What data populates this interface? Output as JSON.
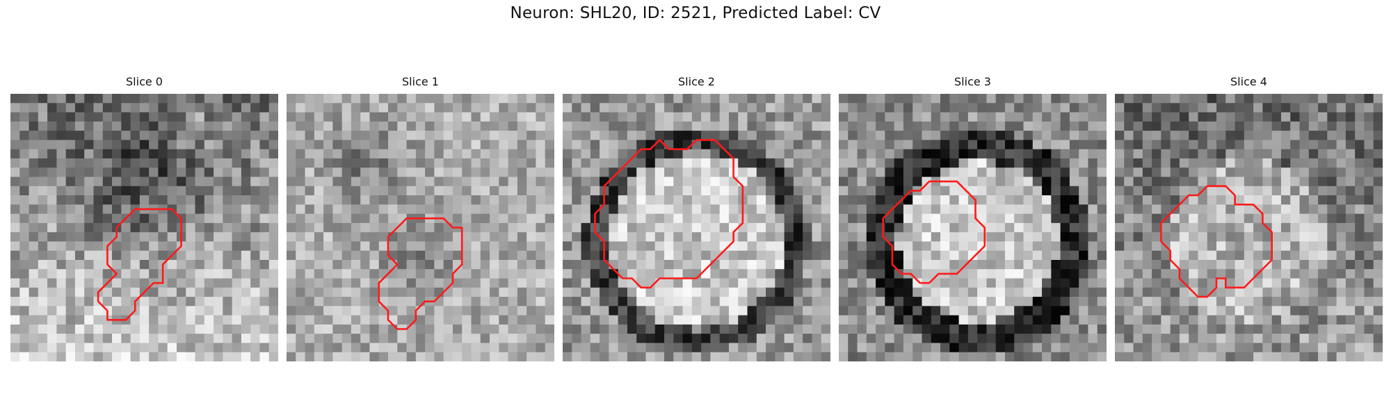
{
  "figure": {
    "title": "Neuron: SHL20, ID: 2521, Predicted Label: CV"
  },
  "panels": [
    {
      "title": "Slice 0"
    },
    {
      "title": "Slice 1"
    },
    {
      "title": "Slice 2"
    },
    {
      "title": "Slice 3"
    },
    {
      "title": "Slice 4"
    }
  ],
  "colors": {
    "contour": "#ff1a1a"
  }
}
